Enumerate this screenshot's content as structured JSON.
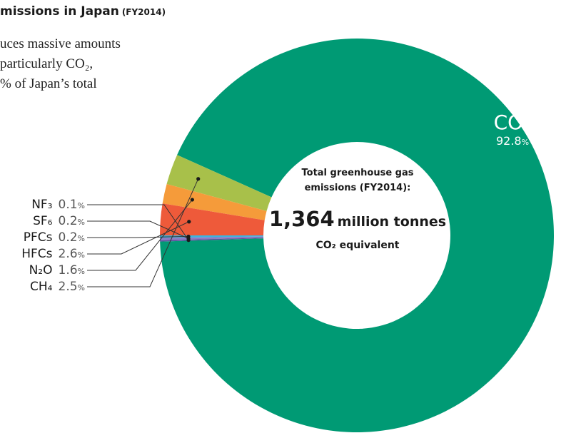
{
  "title": {
    "main": "missions in Japan",
    "fy": "(FY2014)"
  },
  "intro_lines": [
    "uces massive amounts",
    "particularly CO₂,",
    "% of Japan’s total"
  ],
  "center": {
    "label_line1": "Total greenhouse gas",
    "label_line2": "emissions (FY2014):",
    "value": "1,364",
    "unit": "million tonnes",
    "sub": "CO₂ equivalent"
  },
  "co2_label": {
    "name": "CO₂",
    "value": "92.8",
    "unit": "%"
  },
  "legend": [
    {
      "gas": "NF₃",
      "value": "0.1",
      "unit": "%"
    },
    {
      "gas": "SF₆",
      "value": "0.2",
      "unit": "%"
    },
    {
      "gas": "PFCs",
      "value": "0.2",
      "unit": "%"
    },
    {
      "gas": "HFCs",
      "value": "2.6",
      "unit": "%"
    },
    {
      "gas": "N₂O",
      "value": "1.6",
      "unit": "%"
    },
    {
      "gas": "CH₄",
      "value": "2.5",
      "unit": "%"
    }
  ],
  "chart_data": {
    "type": "pie",
    "donut": true,
    "title": "Total greenhouse gas emissions (FY2014): 1,364 million tonnes CO₂ equivalent",
    "total": 1364,
    "total_unit": "million tonnes CO₂ equivalent",
    "slices": [
      {
        "label": "CO₂",
        "value": 92.8,
        "color": "#009a74"
      },
      {
        "label": "CH₄",
        "value": 2.5,
        "color": "#a8c04a"
      },
      {
        "label": "N₂O",
        "value": 1.6,
        "color": "#f59b3a"
      },
      {
        "label": "HFCs",
        "value": 2.6,
        "color": "#ee5a3a"
      },
      {
        "label": "PFCs",
        "value": 0.2,
        "color": "#3ab5e0"
      },
      {
        "label": "SF₆",
        "value": 0.2,
        "color": "#8c7bc4"
      },
      {
        "label": "NF₃",
        "value": 0.1,
        "color": "#5a4f9e"
      }
    ]
  }
}
